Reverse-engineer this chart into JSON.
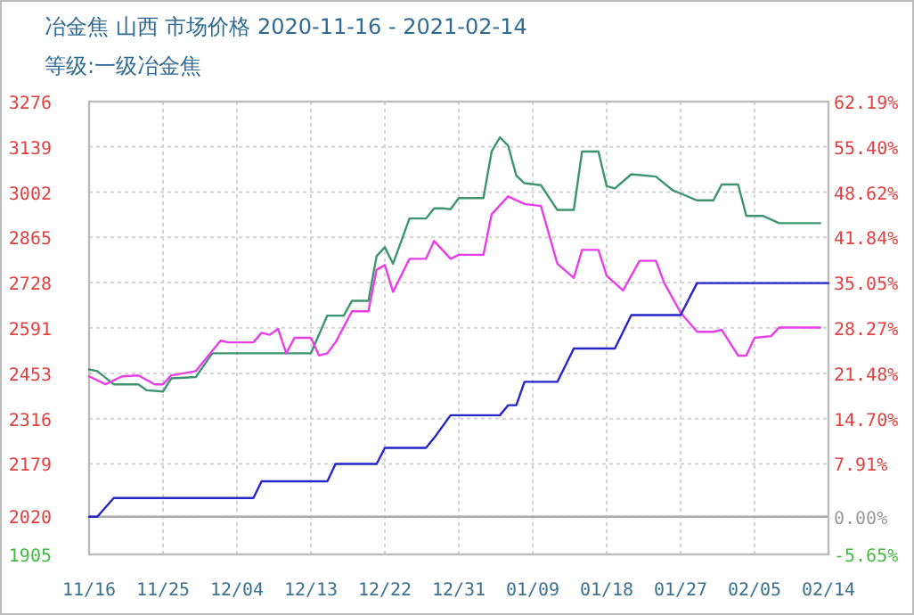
{
  "chart_data": {
    "type": "line",
    "title": "冶金焦 山西 市场价格 2020-11-16 - 2021-02-14",
    "subtitle": "等级:一级冶金焦",
    "xlim": [
      "2020-11-16",
      "2021-02-14"
    ],
    "xticks": [
      {
        "value": "2020-11-16",
        "label": "11/16"
      },
      {
        "value": "2020-11-25",
        "label": "11/25"
      },
      {
        "value": "2020-12-04",
        "label": "12/04"
      },
      {
        "value": "2020-12-13",
        "label": "12/13"
      },
      {
        "value": "2020-12-22",
        "label": "12/22"
      },
      {
        "value": "2020-12-31",
        "label": "12/31"
      },
      {
        "value": "2021-01-09",
        "label": "01/09"
      },
      {
        "value": "2021-01-18",
        "label": "01/18"
      },
      {
        "value": "2021-01-27",
        "label": "01/27"
      },
      {
        "value": "2021-02-05",
        "label": "02/05"
      },
      {
        "value": "2021-02-14",
        "label": "02/14"
      }
    ],
    "ylim": [
      1905,
      3276
    ],
    "yticks": [
      1905,
      2020,
      2179,
      2316,
      2453,
      2591,
      2728,
      2865,
      3002,
      3139,
      3276
    ],
    "y2lim": [
      -5.65,
      62.19
    ],
    "y2ticks": [
      {
        "value": -5.65,
        "label": "-5.65%"
      },
      {
        "value": 0,
        "label": "0.00%"
      },
      {
        "value": 7.91,
        "label": "7.91%"
      },
      {
        "value": 14.7,
        "label": "14.70%"
      },
      {
        "value": 21.48,
        "label": "21.48%"
      },
      {
        "value": 28.27,
        "label": "28.27%"
      },
      {
        "value": 35.05,
        "label": "35.05%"
      },
      {
        "value": 41.84,
        "label": "41.84%"
      },
      {
        "value": 48.62,
        "label": "48.62%"
      },
      {
        "value": 55.4,
        "label": "55.40%"
      },
      {
        "value": 62.19,
        "label": "62.19%"
      }
    ],
    "grid": true,
    "ref_lines": [
      {
        "axis": "y2",
        "value": 0,
        "color": "#aaaaaa"
      }
    ],
    "series": [
      {
        "color": "#3f9470",
        "x": [
          "2020-11-16",
          "2020-11-17",
          "2020-11-19",
          "2020-11-22",
          "2020-11-23",
          "2020-11-25",
          "2020-11-26",
          "2020-11-29",
          "2020-12-01",
          "2020-12-13",
          "2020-12-15",
          "2020-12-17",
          "2020-12-18",
          "2020-12-20",
          "2020-12-21",
          "2020-12-22",
          "2020-12-23",
          "2020-12-25",
          "2020-12-27",
          "2020-12-28",
          "2020-12-29",
          "2020-12-30",
          "2020-12-31",
          "2021-01-03",
          "2021-01-04",
          "2021-01-05",
          "2021-01-06",
          "2021-01-07",
          "2021-01-08",
          "2021-01-10",
          "2021-01-12",
          "2021-01-14",
          "2021-01-15",
          "2021-01-17",
          "2021-01-18",
          "2021-01-19",
          "2021-01-21",
          "2021-01-24",
          "2021-01-26",
          "2021-01-27",
          "2021-01-29",
          "2021-01-31",
          "2021-02-01",
          "2021-02-03",
          "2021-02-04",
          "2021-02-06",
          "2021-02-08",
          "2021-02-13"
        ],
        "values": [
          2465,
          2460,
          2420,
          2420,
          2402,
          2398,
          2438,
          2442,
          2514,
          2514,
          2628,
          2628,
          2673,
          2673,
          2808,
          2835,
          2785,
          2922,
          2922,
          2953,
          2953,
          2950,
          2984,
          2984,
          3125,
          3168,
          3143,
          3052,
          3029,
          3023,
          2948,
          2948,
          3125,
          3125,
          3020,
          3013,
          3056,
          3049,
          3008,
          2998,
          2977,
          2977,
          3025,
          3025,
          2930,
          2930,
          2908,
          2908
        ]
      },
      {
        "color": "#e83ee8",
        "x": [
          "2020-11-16",
          "2020-11-18",
          "2020-11-20",
          "2020-11-22",
          "2020-11-24",
          "2020-11-25",
          "2020-11-26",
          "2020-11-29",
          "2020-12-02",
          "2020-12-03",
          "2020-12-06",
          "2020-12-07",
          "2020-12-08",
          "2020-12-09",
          "2020-12-10",
          "2020-12-11",
          "2020-12-13",
          "2020-12-14",
          "2020-12-15",
          "2020-12-16",
          "2020-12-18",
          "2020-12-20",
          "2020-12-21",
          "2020-12-22",
          "2020-12-23",
          "2020-12-25",
          "2020-12-27",
          "2020-12-28",
          "2020-12-30",
          "2020-12-31",
          "2021-01-03",
          "2021-01-04",
          "2021-01-06",
          "2021-01-08",
          "2021-01-10",
          "2021-01-12",
          "2021-01-14",
          "2021-01-15",
          "2021-01-17",
          "2021-01-18",
          "2021-01-20",
          "2021-01-22",
          "2021-01-24",
          "2021-01-25",
          "2021-01-27",
          "2021-01-29",
          "2021-01-31",
          "2021-02-01",
          "2021-02-03",
          "2021-02-04",
          "2021-02-05",
          "2021-02-07",
          "2021-02-08",
          "2021-02-13"
        ],
        "values": [
          2444,
          2420,
          2444,
          2447,
          2420,
          2420,
          2447,
          2460,
          2552,
          2547,
          2547,
          2576,
          2570,
          2588,
          2514,
          2561,
          2561,
          2507,
          2514,
          2547,
          2641,
          2641,
          2767,
          2781,
          2700,
          2800,
          2800,
          2854,
          2800,
          2812,
          2812,
          2935,
          2989,
          2966,
          2960,
          2785,
          2742,
          2827,
          2827,
          2749,
          2704,
          2794,
          2794,
          2727,
          2637,
          2579,
          2579,
          2585,
          2507,
          2507,
          2561,
          2566,
          2592,
          2592
        ]
      },
      {
        "color": "#2525c8",
        "axis": "y2",
        "x": [
          "2020-11-16",
          "2020-11-17",
          "2020-11-19",
          "2020-12-06",
          "2020-12-07",
          "2020-12-15",
          "2020-12-16",
          "2020-12-21",
          "2020-12-22",
          "2020-12-27",
          "2020-12-28",
          "2020-12-30",
          "2021-01-05",
          "2021-01-06",
          "2021-01-07",
          "2021-01-08",
          "2021-01-12",
          "2021-01-14",
          "2021-01-19",
          "2021-01-21",
          "2021-01-27",
          "2021-01-29",
          "2021-02-14"
        ],
        "values": [
          0,
          0,
          2.8,
          2.8,
          5.3,
          5.3,
          7.9,
          7.9,
          10.3,
          10.3,
          11.8,
          15.2,
          15.2,
          16.7,
          16.7,
          20.2,
          20.2,
          25.2,
          25.2,
          30.2,
          30.2,
          35.0,
          35.0
        ]
      }
    ]
  }
}
